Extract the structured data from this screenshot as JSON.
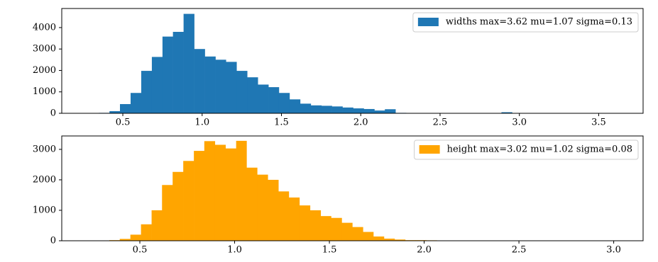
{
  "chart_data": [
    {
      "type": "histogram",
      "series": [
        {
          "name": "widths max=3.62 mu=1.07 sigma=0.13",
          "color": "#1f77b4",
          "values": [
            0,
            20,
            100,
            430,
            950,
            1980,
            2630,
            3580,
            3800,
            4640,
            3000,
            2650,
            2500,
            2400,
            1980,
            1680,
            1340,
            1220,
            950,
            650,
            450,
            370,
            350,
            320,
            270,
            230,
            200,
            130,
            190,
            20,
            15,
            12,
            12,
            10,
            10,
            8,
            8,
            8,
            6,
            50,
            3,
            3,
            2,
            2,
            1,
            1,
            1,
            0,
            0,
            1
          ]
        }
      ],
      "bins": [
        0.282,
        0.349,
        0.416,
        0.482,
        0.549,
        0.616,
        0.683,
        0.75,
        0.816,
        0.883,
        0.95,
        1.017,
        1.084,
        1.15,
        1.217,
        1.284,
        1.351,
        1.418,
        1.484,
        1.551,
        1.618,
        1.685,
        1.752,
        1.818,
        1.885,
        1.952,
        2.019,
        2.086,
        2.152,
        2.219,
        2.286,
        2.353,
        2.42,
        2.486,
        2.553,
        2.62,
        2.687,
        2.754,
        2.82,
        2.887,
        2.954,
        3.021,
        3.088,
        3.154,
        3.221,
        3.288,
        3.355,
        3.422,
        3.488,
        3.555,
        3.622
      ],
      "xlim": [
        0.115,
        3.78
      ],
      "ylim": [
        0,
        4890
      ],
      "xticks": [
        0.5,
        {
          "value": 1.0,
          "label": "1.0"
        },
        1.5,
        {
          "value": 2.0,
          "label": "2.0"
        },
        2.5,
        {
          "value": 3.0,
          "label": "3.0"
        },
        3.5
      ],
      "yticks": [
        0,
        1000,
        2000,
        3000,
        4000
      ],
      "legend": "upper right"
    },
    {
      "type": "histogram",
      "series": [
        {
          "name": "height max=3.02 mu=1.02 sigma=0.08",
          "color": "#ffa500",
          "values": [
            0,
            0,
            20,
            60,
            200,
            540,
            1000,
            1830,
            2260,
            2620,
            2950,
            3270,
            3150,
            3030,
            3280,
            2400,
            2170,
            2000,
            1620,
            1420,
            1160,
            1000,
            810,
            750,
            590,
            450,
            290,
            140,
            70,
            40,
            20,
            20,
            15,
            10,
            10,
            3,
            0,
            0,
            0,
            0,
            0,
            0,
            0,
            0,
            0,
            0,
            0,
            0,
            0,
            1
          ]
        }
      ],
      "bins": [
        0.227,
        0.283,
        0.339,
        0.394,
        0.45,
        0.506,
        0.562,
        0.617,
        0.673,
        0.729,
        0.785,
        0.84,
        0.896,
        0.952,
        1.008,
        1.063,
        1.119,
        1.175,
        1.231,
        1.286,
        1.342,
        1.398,
        1.454,
        1.509,
        1.565,
        1.621,
        1.677,
        1.732,
        1.788,
        1.844,
        1.9,
        1.955,
        2.011,
        2.067,
        2.123,
        2.178,
        2.234,
        2.29,
        2.346,
        2.402,
        2.457,
        2.513,
        2.569,
        2.625,
        2.681,
        2.736,
        2.792,
        2.848,
        2.904,
        2.959,
        3.015
      ],
      "xlim": [
        0.088,
        3.155
      ],
      "ylim": [
        0,
        3440
      ],
      "xticks": [
        0.5,
        {
          "value": 1.0,
          "label": "1.0"
        },
        1.5,
        {
          "value": 2.0,
          "label": "2.0"
        },
        2.5,
        {
          "value": 3.0,
          "label": "3.0"
        }
      ],
      "yticks": [
        0,
        1000,
        2000,
        3000
      ],
      "legend": "upper right"
    }
  ]
}
